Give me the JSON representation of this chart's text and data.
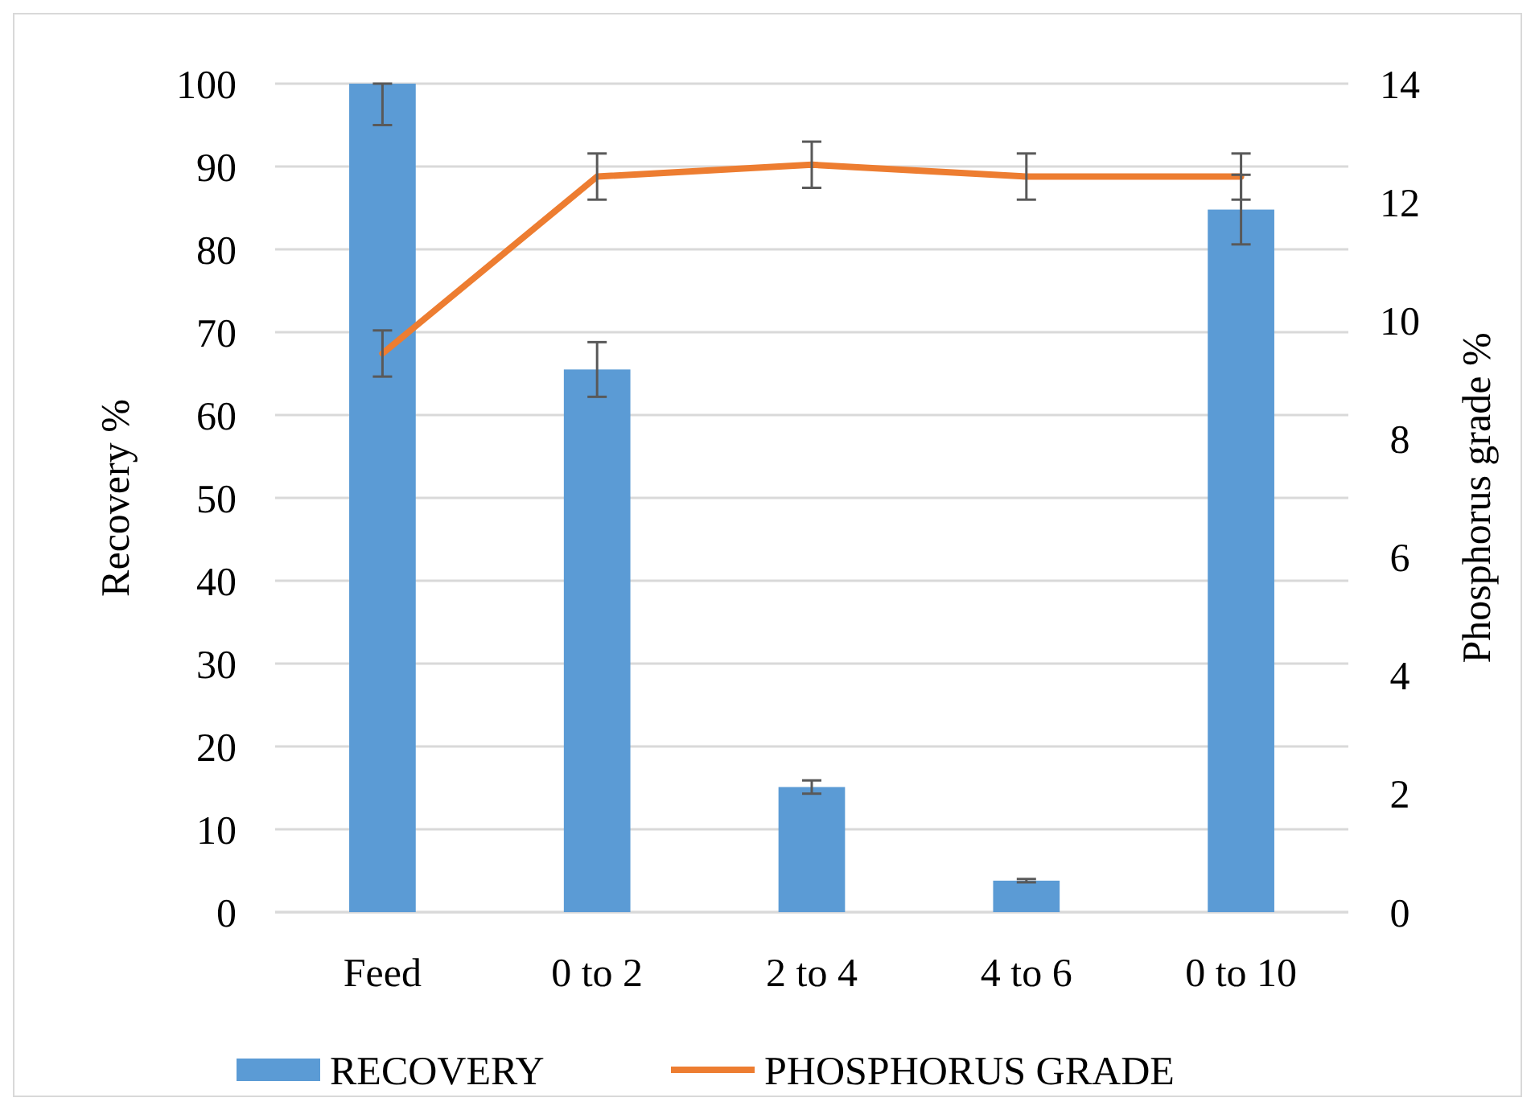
{
  "chart_data": {
    "type": "bar",
    "categories": [
      "Feed",
      "0 to 2",
      "2 to 4",
      "4 to 6",
      "0 to 10"
    ],
    "ylabel": "Recovery %",
    "y2label": "Phosphorus grade %",
    "series": [
      {
        "name": "RECOVERY",
        "color": "#5b9bd5",
        "values": [
          100,
          65.5,
          15.1,
          3.8,
          84.8
        ],
        "errors": [
          [
            95,
            100
          ],
          3.3,
          0.8,
          0.2,
          4.2
        ]
      },
      {
        "name": "PHOSPHORUS GRADE",
        "type": "line",
        "axis": "y2",
        "color": "#ed7d31",
        "values": [
          9.44,
          12.43,
          12.63,
          12.43,
          12.43
        ],
        "errors": [
          0.39,
          0.39,
          0.39,
          0.39,
          0.39
        ]
      }
    ],
    "ylim": [
      0,
      100
    ],
    "yticks": [
      0,
      10,
      20,
      30,
      40,
      50,
      60,
      70,
      80,
      90,
      100
    ],
    "y2lim": [
      0,
      14
    ],
    "y2ticks": [
      0,
      2,
      4,
      6,
      8,
      10,
      12,
      14
    ],
    "grid": "y",
    "legend": "bottom",
    "marker": "none",
    "line_style": "solid"
  }
}
